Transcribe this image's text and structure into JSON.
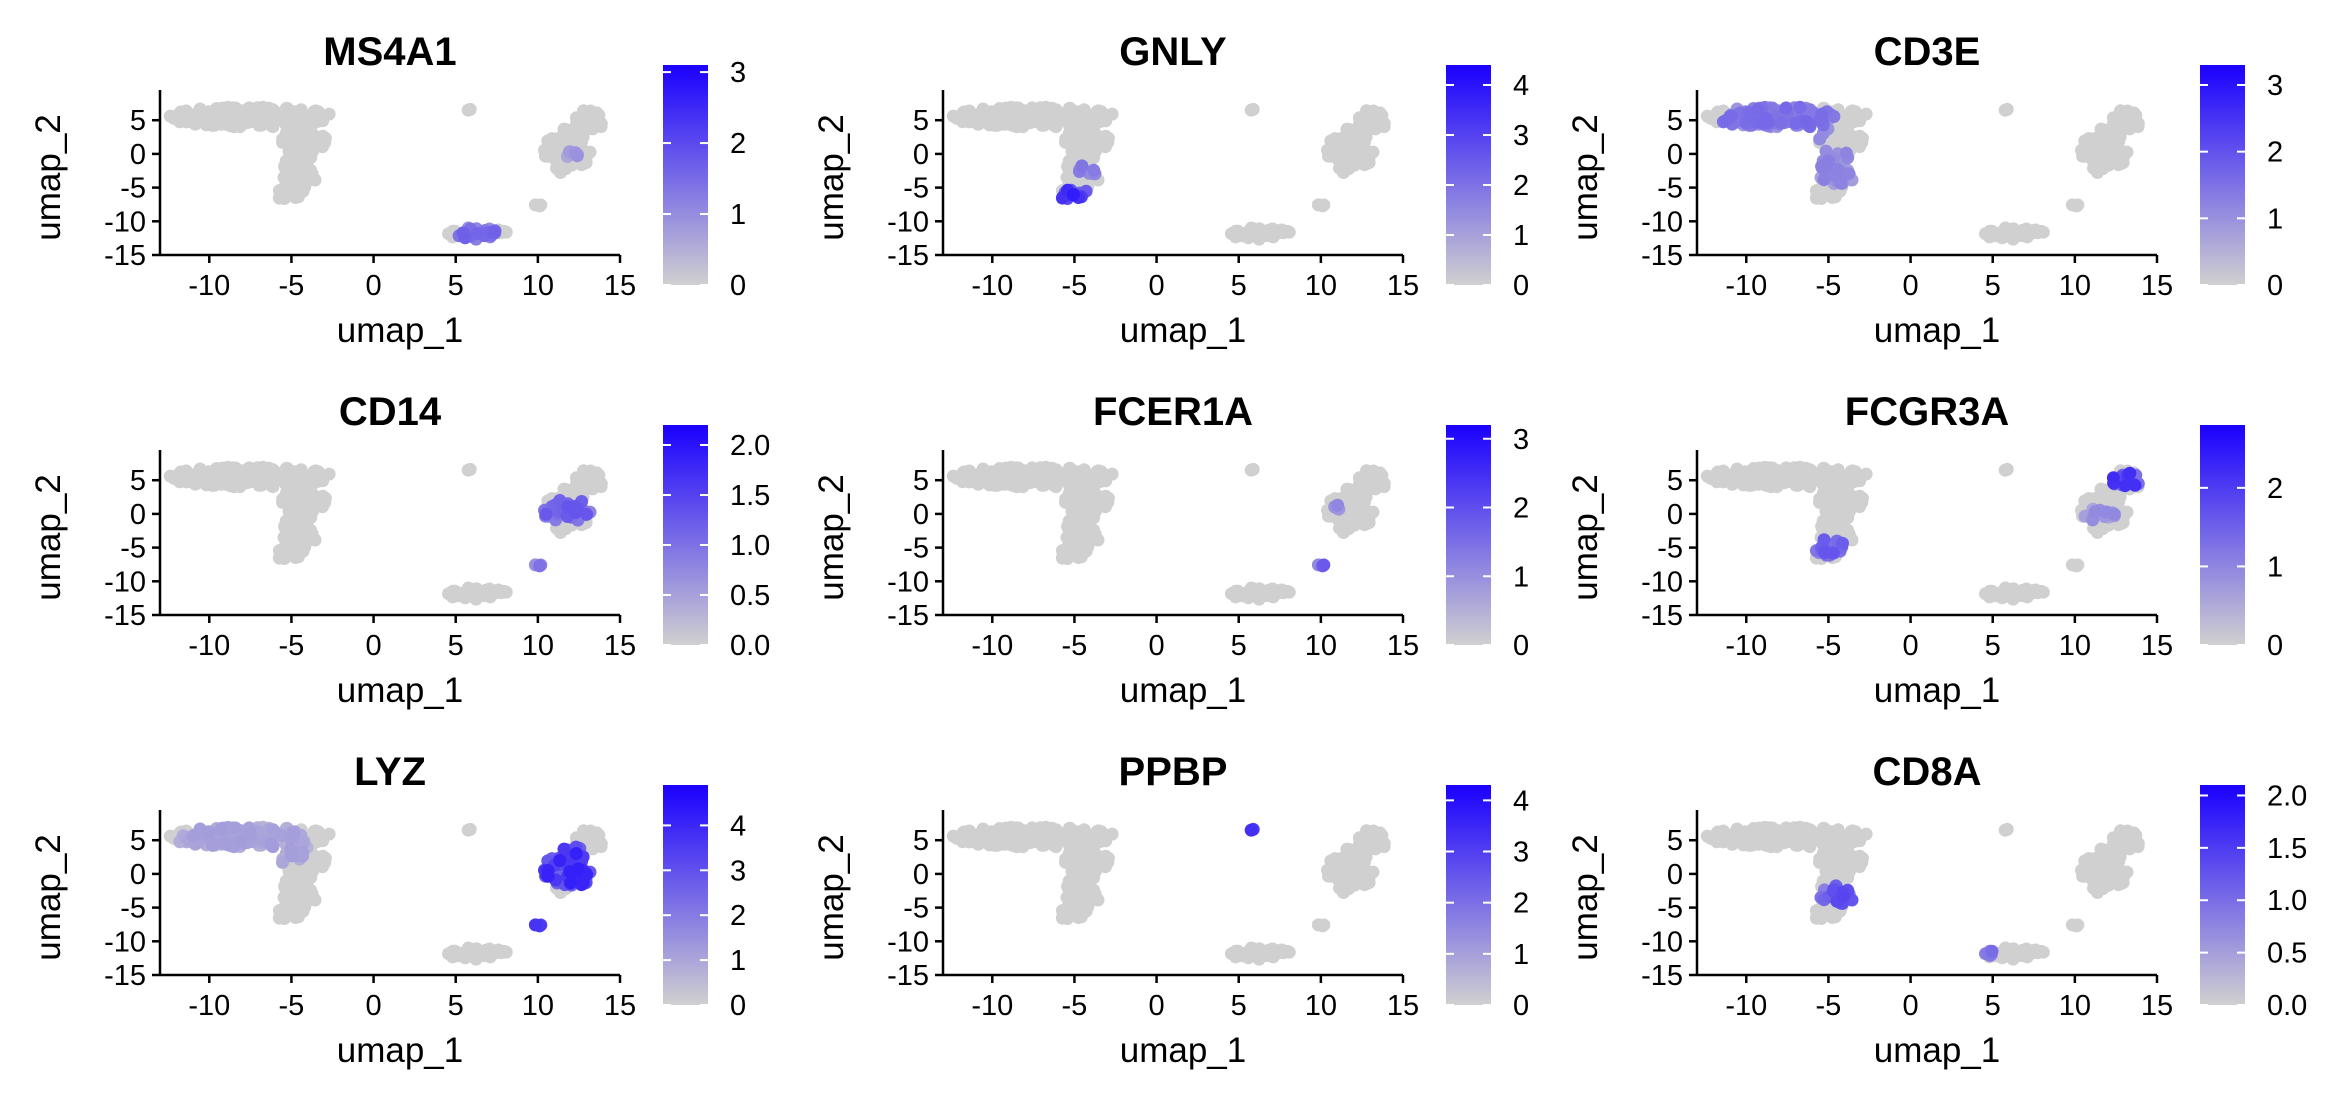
{
  "chart_data": [
    {
      "type": "scatter",
      "title": "MS4A1",
      "xlabel": "umap_1",
      "ylabel": "umap_2",
      "xlim": [
        -13,
        15
      ],
      "ylim": [
        -15,
        8
      ],
      "xticks": [
        "-10",
        "-5",
        "0",
        "5",
        "10",
        "15"
      ],
      "yticks": [
        "5",
        "0",
        "-5",
        "-10",
        "-15"
      ],
      "colorbar": {
        "min": 0,
        "max": 3.1,
        "ticks": [
          "0",
          "1",
          "2",
          "3"
        ]
      },
      "hotspots": [
        {
          "x": 6.3,
          "y": -11.8,
          "r": 1.2,
          "level": 0.55
        },
        {
          "x": 12.0,
          "y": 0,
          "r": 0.5,
          "level": 0.3
        }
      ]
    },
    {
      "type": "scatter",
      "title": "GNLY",
      "xlabel": "umap_1",
      "ylabel": "umap_2",
      "xlim": [
        -13,
        15
      ],
      "ylim": [
        -15,
        8
      ],
      "xticks": [
        "-10",
        "-5",
        "0",
        "5",
        "10",
        "15"
      ],
      "yticks": [
        "5",
        "0",
        "-5",
        "-10",
        "-15"
      ],
      "colorbar": {
        "min": 0,
        "max": 4.4,
        "ticks": [
          "0",
          "1",
          "2",
          "3",
          "4"
        ]
      },
      "hotspots": [
        {
          "x": -5.0,
          "y": -6.3,
          "r": 1.1,
          "level": 0.9
        },
        {
          "x": -4.0,
          "y": -2.0,
          "r": 1.0,
          "level": 0.45
        }
      ]
    },
    {
      "type": "scatter",
      "title": "CD3E",
      "xlabel": "umap_1",
      "ylabel": "umap_2",
      "xlim": [
        -13,
        15
      ],
      "ylim": [
        -15,
        8
      ],
      "xticks": [
        "-10",
        "-5",
        "0",
        "5",
        "10",
        "15"
      ],
      "yticks": [
        "5",
        "0",
        "-5",
        "-10",
        "-15"
      ],
      "colorbar": {
        "min": 0,
        "max": 3.3,
        "ticks": [
          "0",
          "1",
          "2",
          "3"
        ]
      },
      "hotspots": [
        {
          "x": -8.0,
          "y": 4.5,
          "r": 3.5,
          "level": 0.5
        },
        {
          "x": -4.5,
          "y": -2.0,
          "r": 2.5,
          "level": 0.4
        }
      ]
    },
    {
      "type": "scatter",
      "title": "CD14",
      "xlabel": "umap_1",
      "ylabel": "umap_2",
      "xlim": [
        -13,
        15
      ],
      "ylim": [
        -15,
        8
      ],
      "xticks": [
        "-10",
        "-5",
        "0",
        "5",
        "10",
        "15"
      ],
      "yticks": [
        "5",
        "0",
        "-5",
        "-10",
        "-15"
      ],
      "colorbar": {
        "min": 0,
        "max": 2.2,
        "ticks": [
          "0.0",
          "0.5",
          "1.0",
          "1.5",
          "2.0"
        ]
      },
      "hotspots": [
        {
          "x": 11.8,
          "y": 0.5,
          "r": 1.6,
          "level": 0.6
        },
        {
          "x": 10.0,
          "y": -7.5,
          "r": 0.5,
          "level": 0.5
        }
      ]
    },
    {
      "type": "scatter",
      "title": "FCER1A",
      "xlabel": "umap_1",
      "ylabel": "umap_2",
      "xlim": [
        -13,
        15
      ],
      "ylim": [
        -15,
        8
      ],
      "xticks": [
        "-10",
        "-5",
        "0",
        "5",
        "10",
        "15"
      ],
      "yticks": [
        "5",
        "0",
        "-5",
        "-10",
        "-15"
      ],
      "colorbar": {
        "min": 0,
        "max": 3.2,
        "ticks": [
          "0",
          "1",
          "2",
          "3"
        ]
      },
      "hotspots": [
        {
          "x": 10.0,
          "y": -7.5,
          "r": 0.5,
          "level": 0.6
        },
        {
          "x": 11.0,
          "y": 1.0,
          "r": 0.4,
          "level": 0.4
        }
      ]
    },
    {
      "type": "scatter",
      "title": "FCGR3A",
      "xlabel": "umap_1",
      "ylabel": "umap_2",
      "xlim": [
        -13,
        15
      ],
      "ylim": [
        -15,
        8
      ],
      "xticks": [
        "-10",
        "-5",
        "0",
        "5",
        "10",
        "15"
      ],
      "yticks": [
        "5",
        "0",
        "-5",
        "-10",
        "-15"
      ],
      "colorbar": {
        "min": 0,
        "max": 2.8,
        "ticks": [
          "0",
          "1",
          "2"
        ]
      },
      "hotspots": [
        {
          "x": 13.0,
          "y": 5.0,
          "r": 1.1,
          "level": 0.8
        },
        {
          "x": -4.8,
          "y": -5.0,
          "r": 1.3,
          "level": 0.6
        },
        {
          "x": 11.5,
          "y": 0,
          "r": 1.0,
          "level": 0.35
        }
      ]
    },
    {
      "type": "scatter",
      "title": "LYZ",
      "xlabel": "umap_1",
      "ylabel": "umap_2",
      "xlim": [
        -13,
        15
      ],
      "ylim": [
        -15,
        8
      ],
      "xticks": [
        "-10",
        "-5",
        "0",
        "5",
        "10",
        "15"
      ],
      "yticks": [
        "5",
        "0",
        "-5",
        "-10",
        "-15"
      ],
      "colorbar": {
        "min": 0,
        "max": 4.9,
        "ticks": [
          "0",
          "1",
          "2",
          "3",
          "4"
        ]
      },
      "hotspots": [
        {
          "x": 12.0,
          "y": 1.0,
          "r": 3.0,
          "level": 0.85
        },
        {
          "x": 10.0,
          "y": -7.5,
          "r": 0.5,
          "level": 0.8
        },
        {
          "x": -8.0,
          "y": 4.0,
          "r": 4.0,
          "level": 0.25
        }
      ]
    },
    {
      "type": "scatter",
      "title": "PPBP",
      "xlabel": "umap_1",
      "ylabel": "umap_2",
      "xlim": [
        -13,
        15
      ],
      "ylim": [
        -15,
        8
      ],
      "xticks": [
        "-10",
        "-5",
        "0",
        "5",
        "10",
        "15"
      ],
      "yticks": [
        "5",
        "0",
        "-5",
        "-10",
        "-15"
      ],
      "colorbar": {
        "min": 0,
        "max": 4.3,
        "ticks": [
          "0",
          "1",
          "2",
          "3",
          "4"
        ]
      },
      "hotspots": [
        {
          "x": 5.8,
          "y": 6.5,
          "r": 0.5,
          "level": 1.0
        }
      ]
    },
    {
      "type": "scatter",
      "title": "CD8A",
      "xlabel": "umap_1",
      "ylabel": "umap_2",
      "xlim": [
        -13,
        15
      ],
      "ylim": [
        -15,
        8
      ],
      "xticks": [
        "-10",
        "-5",
        "0",
        "5",
        "10",
        "15"
      ],
      "yticks": [
        "5",
        "0",
        "-5",
        "-10",
        "-15"
      ],
      "colorbar": {
        "min": 0,
        "max": 2.1,
        "ticks": [
          "0.0",
          "0.5",
          "1.0",
          "1.5",
          "2.0"
        ]
      },
      "hotspots": [
        {
          "x": -4.2,
          "y": -3.0,
          "r": 1.4,
          "level": 0.7
        },
        {
          "x": 4.8,
          "y": -11.8,
          "r": 0.4,
          "level": 0.5
        }
      ]
    }
  ],
  "colors": {
    "low": "#d0d0d0",
    "high": "#1a00ff",
    "axis": "#000000"
  }
}
